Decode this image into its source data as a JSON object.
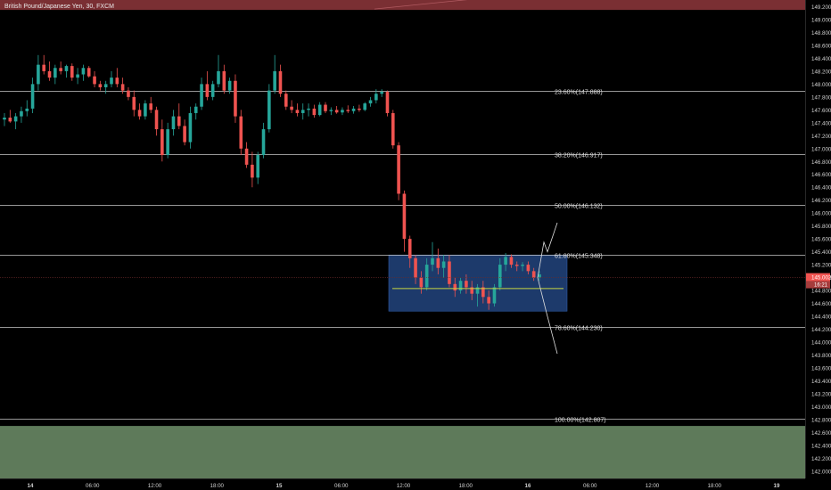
{
  "chart_data": {
    "type": "candlestick",
    "title": "British Pound/Japanese Yen, 30, FXCM",
    "price_axis": {
      "min": 141.9,
      "max": 149.1,
      "ticks": [
        "149.200",
        "149.000",
        "148.800",
        "148.600",
        "148.400",
        "148.200",
        "148.000",
        "147.800",
        "147.600",
        "147.400",
        "147.200",
        "147.000",
        "146.800",
        "146.600",
        "146.400",
        "146.200",
        "146.000",
        "145.800",
        "145.600",
        "145.400",
        "145.200",
        "145.000",
        "144.800",
        "144.600",
        "144.400",
        "144.200",
        "144.000",
        "143.800",
        "143.600",
        "143.400",
        "143.200",
        "143.000",
        "142.800",
        "142.600",
        "142.400",
        "142.200",
        "142.000"
      ]
    },
    "time_axis": {
      "labels": [
        "14",
        "06:00",
        "12:00",
        "18:00",
        "15",
        "06:00",
        "12:00",
        "18:00",
        "16",
        "06:00",
        "12:00",
        "18:00",
        "19"
      ],
      "bold_labels": [
        "14",
        "15",
        "16",
        "19"
      ]
    },
    "current_price": {
      "value": "145.002",
      "countdown": "16:21",
      "color": "#ef5350"
    },
    "fib_levels": [
      {
        "label": "23.60%(147.888)",
        "price": 147.888
      },
      {
        "label": "38.20%(146.917)",
        "price": 146.917
      },
      {
        "label": "50.00%(146.132)",
        "price": 146.132
      },
      {
        "label": "61.80%(145.348)",
        "price": 145.348
      },
      {
        "label": "78.60%(144.230)",
        "price": 144.23
      },
      {
        "label": "100.00%(142.807)",
        "price": 142.807
      }
    ],
    "zones": {
      "top_band": {
        "from": 149.3,
        "to": 149.15,
        "color": "#7a2f33"
      },
      "bottom_band": {
        "from": 142.7,
        "to": 141.7,
        "color": "#5e7a5a"
      },
      "consolidation_box": {
        "from": 145.35,
        "to": 144.48,
        "color": "#1d3a6b"
      },
      "box_midline": {
        "price": 144.83,
        "color": "#c8d640"
      }
    },
    "scenario_arrows": {
      "up_target": 145.85,
      "down_target": 143.82,
      "mid": 144.45,
      "start": 145.0
    },
    "colors": {
      "up": "#26a69a",
      "down": "#ef5350",
      "grid_line": "#c8c8c8",
      "axis_text": "#d0d0d0",
      "background": "#000000"
    },
    "candles": [
      [
        147.45,
        147.55,
        147.35,
        147.48
      ],
      [
        147.48,
        147.6,
        147.4,
        147.42
      ],
      [
        147.42,
        147.55,
        147.3,
        147.5
      ],
      [
        147.5,
        147.65,
        147.4,
        147.58
      ],
      [
        147.58,
        147.75,
        147.5,
        147.62
      ],
      [
        147.62,
        148.1,
        147.55,
        148.0
      ],
      [
        148.0,
        148.45,
        147.9,
        148.3
      ],
      [
        148.3,
        148.45,
        148.15,
        148.2
      ],
      [
        148.2,
        148.35,
        148.05,
        148.1
      ],
      [
        148.1,
        148.3,
        148.0,
        148.25
      ],
      [
        148.25,
        148.35,
        148.15,
        148.2
      ],
      [
        148.2,
        148.3,
        148.1,
        148.28
      ],
      [
        148.28,
        148.32,
        148.05,
        148.1
      ],
      [
        148.1,
        148.25,
        148.0,
        148.15
      ],
      [
        148.15,
        148.3,
        148.05,
        148.25
      ],
      [
        148.25,
        148.28,
        148.1,
        148.12
      ],
      [
        148.12,
        148.2,
        147.95,
        148.0
      ],
      [
        148.0,
        148.05,
        147.9,
        147.95
      ],
      [
        147.95,
        148.05,
        147.85,
        148.0
      ],
      [
        148.0,
        148.2,
        147.95,
        148.1
      ],
      [
        148.1,
        148.25,
        147.95,
        148.0
      ],
      [
        148.0,
        148.1,
        147.85,
        147.9
      ],
      [
        147.9,
        147.95,
        147.75,
        147.8
      ],
      [
        147.8,
        147.9,
        147.5,
        147.6
      ],
      [
        147.6,
        147.7,
        147.45,
        147.5
      ],
      [
        147.5,
        147.75,
        147.45,
        147.7
      ],
      [
        147.7,
        147.8,
        147.55,
        147.6
      ],
      [
        147.6,
        147.65,
        147.2,
        147.3
      ],
      [
        147.3,
        147.45,
        146.8,
        146.9
      ],
      [
        146.9,
        147.4,
        146.85,
        147.3
      ],
      [
        147.3,
        147.6,
        147.2,
        147.5
      ],
      [
        147.5,
        147.7,
        147.3,
        147.35
      ],
      [
        147.35,
        147.45,
        147.05,
        147.1
      ],
      [
        147.1,
        147.65,
        147.0,
        147.55
      ],
      [
        147.55,
        147.7,
        147.45,
        147.65
      ],
      [
        147.65,
        148.1,
        147.6,
        148.0
      ],
      [
        148.0,
        148.2,
        147.75,
        147.8
      ],
      [
        147.8,
        148.05,
        147.75,
        148.0
      ],
      [
        148.0,
        148.45,
        147.95,
        148.2
      ],
      [
        148.2,
        148.3,
        147.85,
        147.9
      ],
      [
        147.9,
        148.1,
        147.85,
        148.05
      ],
      [
        148.05,
        148.15,
        147.4,
        147.5
      ],
      [
        147.5,
        147.6,
        146.9,
        147.0
      ],
      [
        147.0,
        147.1,
        146.7,
        146.75
      ],
      [
        146.75,
        146.95,
        146.4,
        146.55
      ],
      [
        146.55,
        146.95,
        146.45,
        146.9
      ],
      [
        146.9,
        147.4,
        146.85,
        147.3
      ],
      [
        147.3,
        148.0,
        147.25,
        147.9
      ],
      [
        147.9,
        148.45,
        147.85,
        148.2
      ],
      [
        148.2,
        148.3,
        147.8,
        147.85
      ],
      [
        147.85,
        147.9,
        147.6,
        147.65
      ],
      [
        147.65,
        147.75,
        147.55,
        147.6
      ],
      [
        147.6,
        147.7,
        147.5,
        147.55
      ],
      [
        147.55,
        147.7,
        147.45,
        147.6
      ],
      [
        147.6,
        147.7,
        147.5,
        147.62
      ],
      [
        147.62,
        147.68,
        147.48,
        147.52
      ],
      [
        147.52,
        147.72,
        147.5,
        147.68
      ],
      [
        147.68,
        147.72,
        147.55,
        147.58
      ],
      [
        147.58,
        147.64,
        147.52,
        147.6
      ],
      [
        147.6,
        147.66,
        147.54,
        147.56
      ],
      [
        147.56,
        147.64,
        147.52,
        147.6
      ],
      [
        147.6,
        147.67,
        147.55,
        147.58
      ],
      [
        147.58,
        147.66,
        147.54,
        147.62
      ],
      [
        147.62,
        147.68,
        147.57,
        147.6
      ],
      [
        147.6,
        147.72,
        147.58,
        147.7
      ],
      [
        147.7,
        147.8,
        147.65,
        147.75
      ],
      [
        147.75,
        147.92,
        147.7,
        147.85
      ],
      [
        147.85,
        147.92,
        147.8,
        147.88
      ],
      [
        147.88,
        147.9,
        147.5,
        147.55
      ],
      [
        147.55,
        147.6,
        147.0,
        147.05
      ],
      [
        147.05,
        147.1,
        146.2,
        146.3
      ],
      [
        146.3,
        146.35,
        145.4,
        145.6
      ],
      [
        145.6,
        145.65,
        145.15,
        145.3
      ],
      [
        145.3,
        145.35,
        144.9,
        145.0
      ],
      [
        145.0,
        145.1,
        144.75,
        144.85
      ],
      [
        144.85,
        145.3,
        144.8,
        145.2
      ],
      [
        145.2,
        145.55,
        145.1,
        145.3
      ],
      [
        145.3,
        145.45,
        145.05,
        145.15
      ],
      [
        145.15,
        145.35,
        145.0,
        145.25
      ],
      [
        145.25,
        145.35,
        144.85,
        144.9
      ],
      [
        144.9,
        145.0,
        144.7,
        144.8
      ],
      [
        144.8,
        145.0,
        144.75,
        144.95
      ],
      [
        144.95,
        145.05,
        144.75,
        144.85
      ],
      [
        144.85,
        144.95,
        144.65,
        144.75
      ],
      [
        144.75,
        144.9,
        144.55,
        144.85
      ],
      [
        144.85,
        144.95,
        144.6,
        144.7
      ],
      [
        144.7,
        144.8,
        144.5,
        144.6
      ],
      [
        144.6,
        144.9,
        144.55,
        144.85
      ],
      [
        144.85,
        145.3,
        144.8,
        145.2
      ],
      [
        145.2,
        145.38,
        145.1,
        145.32
      ],
      [
        145.32,
        145.36,
        145.15,
        145.2
      ],
      [
        145.2,
        145.25,
        145.1,
        145.18
      ],
      [
        145.18,
        145.24,
        145.1,
        145.2
      ],
      [
        145.2,
        145.25,
        145.05,
        145.1
      ],
      [
        145.1,
        145.15,
        144.95,
        145.0
      ],
      [
        145.0,
        145.1,
        144.95,
        145.05
      ]
    ]
  }
}
